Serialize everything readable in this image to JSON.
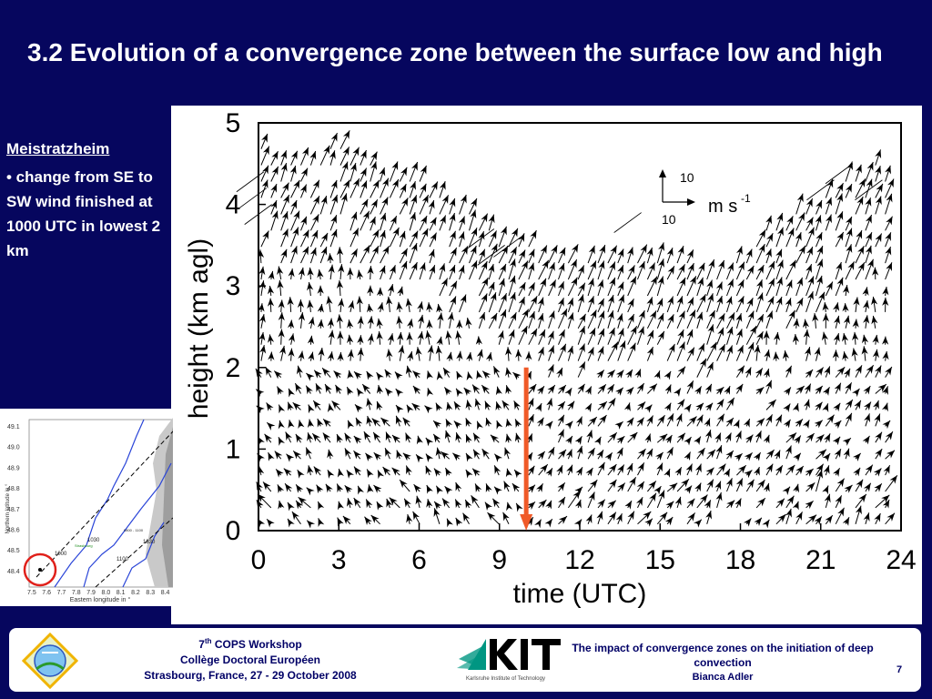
{
  "slide": {
    "title": "3.2 Evolution of a convergence zone between the surface low and high"
  },
  "sidebar": {
    "station": "Meistratzheim",
    "bullet": "• change from SE to SW wind finished at 1000 UTC in lowest 2 km"
  },
  "chart_data": {
    "type": "vector-field",
    "xlabel": "time (UTC)",
    "ylabel": "height (km agl)",
    "xlim": [
      0,
      24
    ],
    "ylim": [
      0,
      5
    ],
    "x_ticks": [
      0,
      3,
      6,
      9,
      12,
      15,
      18,
      21,
      24
    ],
    "y_ticks": [
      0,
      1,
      2,
      3,
      4,
      5
    ],
    "scale_reference": {
      "u": 10,
      "v": 10,
      "unit": "m s",
      "unit_exponent": "-1"
    },
    "top_boundary": [
      [
        0,
        4.7
      ],
      [
        1,
        4.6
      ],
      [
        2,
        4.65
      ],
      [
        3,
        4.7
      ],
      [
        4,
        4.55
      ],
      [
        5,
        4.4
      ],
      [
        6,
        4.3
      ],
      [
        7,
        4.1
      ],
      [
        8,
        3.9
      ],
      [
        9,
        3.65
      ],
      [
        9.5,
        3.5
      ],
      [
        10,
        3.6
      ],
      [
        10.5,
        3.45
      ],
      [
        11,
        3.35
      ],
      [
        12,
        3.25
      ],
      [
        13,
        3.35
      ],
      [
        14,
        3.4
      ],
      [
        15,
        3.45
      ],
      [
        16,
        3.3
      ],
      [
        17,
        3.15
      ],
      [
        18,
        3.4
      ],
      [
        19,
        3.7
      ],
      [
        20,
        3.95
      ],
      [
        21,
        4.1
      ],
      [
        22,
        4.3
      ],
      [
        23,
        4.5
      ],
      [
        23.5,
        4.4
      ]
    ],
    "vertical_marker": {
      "time": 10,
      "height_from": 2,
      "height_to": 0,
      "color": "#f05a28"
    },
    "wind_regimes": [
      {
        "t_from": 0,
        "t_to": 10,
        "z_from": 0,
        "z_to": 2,
        "direction": "SE"
      },
      {
        "t_from": 10,
        "t_to": 24,
        "z_from": 0,
        "z_to": 2,
        "direction": "SW"
      }
    ]
  },
  "map": {
    "lat_ticks": [
      "49.1",
      "49.0",
      "48.9",
      "48.8",
      "48.7",
      "48.6",
      "48.5",
      "48.4"
    ],
    "lon_ticks": [
      "7.5",
      "7.6",
      "7.7",
      "7.8",
      "7.9",
      "8.0",
      "8.1",
      "8.2",
      "8.3",
      "8.4"
    ],
    "ylabel": "Northern latitude in °",
    "xlabel": "Eastern longitude in °",
    "labels": [
      "1000",
      "1030",
      "1100",
      "1330",
      "Strasbourg",
      "0800 - 1100"
    ],
    "circle_color": "#e0201a",
    "river_color": "#2a45d8"
  },
  "footer": {
    "workshop_num": "7",
    "workshop_sup": "th",
    "workshop_name": "COPS Workshop",
    "college": "Collège Doctoral Européen",
    "location": "Strasbourg, France, 27 - 29 October 2008",
    "kit_name": "Karlsruhe Institute of Technology",
    "talk_title": "The impact of convergence zones on the initiation of deep convection",
    "author": "Bianca Adler",
    "page": "7"
  }
}
